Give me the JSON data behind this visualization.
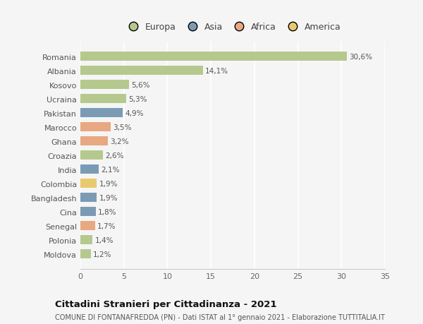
{
  "countries": [
    "Romania",
    "Albania",
    "Kosovo",
    "Ucraina",
    "Pakistan",
    "Marocco",
    "Ghana",
    "Croazia",
    "India",
    "Colombia",
    "Bangladesh",
    "Cina",
    "Senegal",
    "Polonia",
    "Moldova"
  ],
  "values": [
    30.6,
    14.1,
    5.6,
    5.3,
    4.9,
    3.5,
    3.2,
    2.6,
    2.1,
    1.9,
    1.9,
    1.8,
    1.7,
    1.4,
    1.2
  ],
  "labels": [
    "30,6%",
    "14,1%",
    "5,6%",
    "5,3%",
    "4,9%",
    "3,5%",
    "3,2%",
    "2,6%",
    "2,1%",
    "1,9%",
    "1,9%",
    "1,8%",
    "1,7%",
    "1,4%",
    "1,2%"
  ],
  "colors": [
    "#b5c98e",
    "#b5c98e",
    "#b5c98e",
    "#b5c98e",
    "#7b9bb5",
    "#e8a882",
    "#e8a882",
    "#b5c98e",
    "#7b9bb5",
    "#e8c96e",
    "#7b9bb5",
    "#7b9bb5",
    "#e8a882",
    "#b5c98e",
    "#b5c98e"
  ],
  "legend_labels": [
    "Europa",
    "Asia",
    "Africa",
    "America"
  ],
  "legend_colors": [
    "#b5c98e",
    "#7b9bb5",
    "#e8a882",
    "#e8c96e"
  ],
  "title": "Cittadini Stranieri per Cittadinanza - 2021",
  "subtitle": "COMUNE DI FONTANAFREDDA (PN) - Dati ISTAT al 1° gennaio 2021 - Elaborazione TUTTITALIA.IT",
  "xlim": [
    0,
    35
  ],
  "xticks": [
    0,
    5,
    10,
    15,
    20,
    25,
    30,
    35
  ],
  "background_color": "#f5f5f5",
  "grid_color": "#ffffff",
  "bar_height": 0.65
}
